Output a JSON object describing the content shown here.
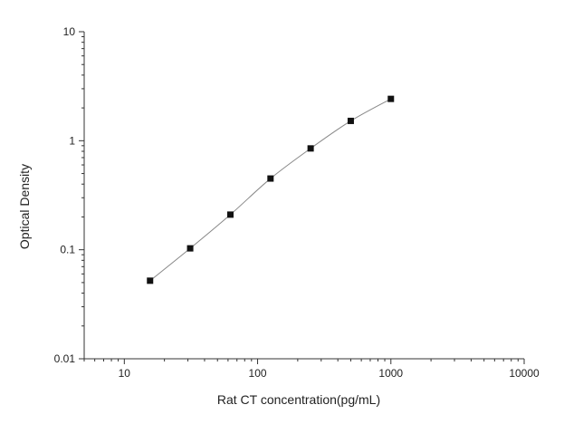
{
  "chart_data": {
    "type": "scatter",
    "title": "",
    "xlabel": "Rat CT concentration(pg/mL)",
    "ylabel": "Optical Density",
    "x_scale": "log",
    "y_scale": "log",
    "xlim": [
      5,
      10000
    ],
    "ylim": [
      0.01,
      10
    ],
    "x_ticks": [
      {
        "value": 10,
        "label": "10"
      },
      {
        "value": 100,
        "label": "100"
      },
      {
        "value": 1000,
        "label": "1000"
      },
      {
        "value": 10000,
        "label": "10000"
      }
    ],
    "y_ticks": [
      {
        "value": 0.01,
        "label": "0.01"
      },
      {
        "value": 0.1,
        "label": "0.1"
      },
      {
        "value": 1,
        "label": "1"
      },
      {
        "value": 10,
        "label": "10"
      }
    ],
    "grid": false,
    "legend": "none",
    "series": [
      {
        "x": [
          15.6,
          31.2,
          62.5,
          125,
          250,
          500,
          1000
        ],
        "y": [
          0.052,
          0.103,
          0.21,
          0.45,
          0.85,
          1.52,
          2.42
        ],
        "marker": "square",
        "fit_line": true
      }
    ],
    "colors": {
      "axis": "#333333",
      "marker": "#111111",
      "line": "#888888"
    }
  }
}
